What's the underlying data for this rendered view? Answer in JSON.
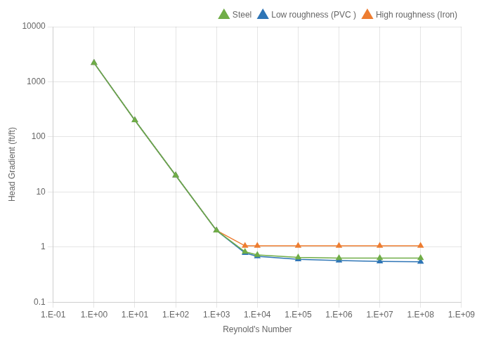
{
  "chart_data": {
    "type": "line",
    "xlabel": "Reynold's Number",
    "ylabel": "Head Gradient (ft/ft)",
    "log": true,
    "grid": true,
    "legend": "upper right",
    "xlim": [
      0.1,
      1000000000.0
    ],
    "ylim": [
      0.1,
      10000
    ],
    "x": [
      1,
      10,
      100,
      1000,
      5000,
      10000,
      100000,
      1000000,
      10000000,
      100000000
    ],
    "series": [
      {
        "name": "Steel",
        "color": "#70ad47",
        "marker": "triangle",
        "values": [
          2200,
          200,
          20,
          2.0,
          0.82,
          0.72,
          0.65,
          0.63,
          0.63,
          0.63
        ]
      },
      {
        "name": "Low roughness (PVC )",
        "color": "#2e75b6",
        "marker": "triangle",
        "values": [
          2200,
          200,
          20,
          2.0,
          0.78,
          0.68,
          0.6,
          0.57,
          0.55,
          0.54
        ]
      },
      {
        "name": "High roughness (Iron)",
        "color": "#ed7d31",
        "marker": "triangle",
        "values": [
          2200,
          200,
          20,
          2.0,
          1.05,
          1.05,
          1.05,
          1.05,
          1.05,
          1.05
        ]
      }
    ],
    "xticks": [
      {
        "value": 0.1,
        "label": "1.E-01"
      },
      {
        "value": 1,
        "label": "1.E+00"
      },
      {
        "value": 10,
        "label": "1.E+01"
      },
      {
        "value": 100,
        "label": "1.E+02"
      },
      {
        "value": 1000,
        "label": "1.E+03"
      },
      {
        "value": 10000,
        "label": "1.E+04"
      },
      {
        "value": 100000,
        "label": "1.E+05"
      },
      {
        "value": 1000000,
        "label": "1.E+06"
      },
      {
        "value": 10000000,
        "label": "1.E+07"
      },
      {
        "value": 100000000,
        "label": "1.E+08"
      },
      {
        "value": 1000000000,
        "label": "1.E+09"
      }
    ],
    "yticks": [
      0.1,
      1,
      10,
      100,
      1000,
      10000
    ]
  }
}
